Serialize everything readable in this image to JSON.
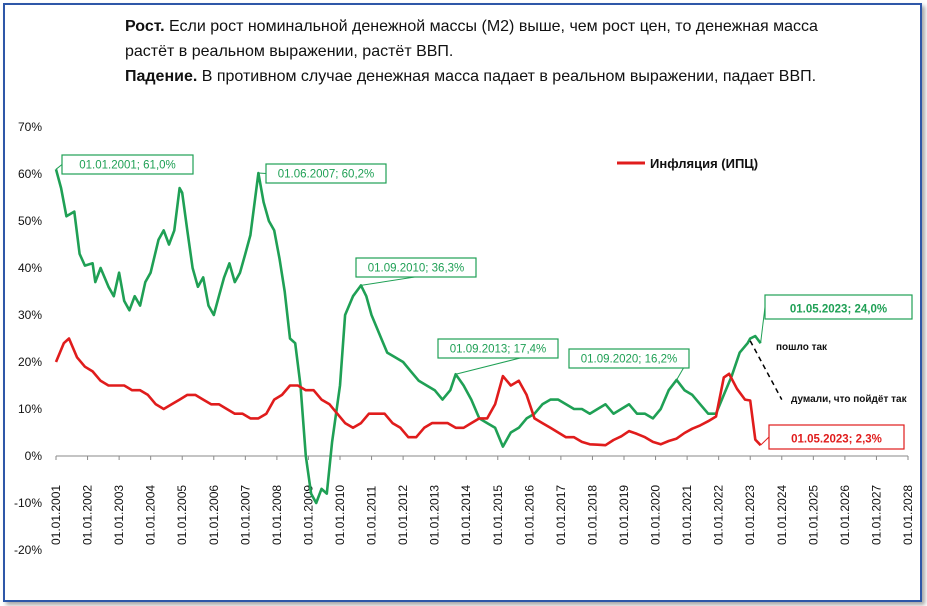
{
  "intro": {
    "growth_label": "Рост.",
    "growth_text": " Если рост номинальной денежной массы (М2) выше, чем рост цен,  то денежная масса растёт в реальном выражении, растёт ВВП.",
    "fall_label": "Падение.",
    "fall_text": " В противном случае денежная масса падает в реальном выражении, падает ВВП."
  },
  "legend": {
    "label": "Инфляция (ИПЦ)"
  },
  "notes": {
    "actual": "пошло так",
    "expected": "думали, что пойдёт так"
  },
  "colors": {
    "m2": "#1fa055",
    "cpi": "#e01c1c",
    "frame": "#2e57a8",
    "dashed": "#000000"
  },
  "chart_data": {
    "type": "line",
    "ylim": [
      -20,
      70
    ],
    "yticks": [
      "-20%",
      "-10%",
      "0%",
      "10%",
      "20%",
      "30%",
      "40%",
      "50%",
      "60%",
      "70%"
    ],
    "x_range": [
      "2001-01-01",
      "2028-01-01"
    ],
    "x_tick_labels": [
      "01.01.2001",
      "01.01.2002",
      "01.01.2003",
      "01.01.2004",
      "01.01.2005",
      "01.01.2006",
      "01.01.2007",
      "01.01.2008",
      "01.01.2009",
      "01.01.2010",
      "01.01.2011",
      "01.01.2012",
      "01.01.2013",
      "01.01.2014",
      "01.01.2015",
      "01.01.2016",
      "01.01.2017",
      "01.01.2018",
      "01.01.2019",
      "01.01.2020",
      "01.01.2021",
      "01.01.2022",
      "01.01.2023",
      "01.01.2024",
      "01.01.2025",
      "01.01.2026",
      "01.01.2027",
      "01.01.2028"
    ],
    "series": [
      {
        "key": "m2",
        "points": [
          [
            "2001-01-01",
            61.0
          ],
          [
            "2001-03-01",
            57
          ],
          [
            "2001-05-01",
            51
          ],
          [
            "2001-08-01",
            52
          ],
          [
            "2001-10-01",
            43
          ],
          [
            "2001-12-01",
            40.5
          ],
          [
            "2002-03-01",
            41
          ],
          [
            "2002-04-01",
            37
          ],
          [
            "2002-06-01",
            40
          ],
          [
            "2002-09-01",
            36
          ],
          [
            "2002-11-01",
            34
          ],
          [
            "2003-01-01",
            39
          ],
          [
            "2003-03-01",
            33
          ],
          [
            "2003-05-01",
            31
          ],
          [
            "2003-07-01",
            34
          ],
          [
            "2003-09-01",
            32
          ],
          [
            "2003-11-01",
            37
          ],
          [
            "2004-01-01",
            39
          ],
          [
            "2004-04-01",
            46
          ],
          [
            "2004-06-01",
            48
          ],
          [
            "2004-08-01",
            45
          ],
          [
            "2004-10-01",
            48
          ],
          [
            "2004-12-01",
            57
          ],
          [
            "2005-01-01",
            56
          ],
          [
            "2005-03-01",
            48
          ],
          [
            "2005-05-01",
            40
          ],
          [
            "2005-07-01",
            36
          ],
          [
            "2005-09-01",
            38
          ],
          [
            "2005-11-01",
            32
          ],
          [
            "2006-01-01",
            30
          ],
          [
            "2006-03-01",
            34
          ],
          [
            "2006-05-01",
            38
          ],
          [
            "2006-07-01",
            41
          ],
          [
            "2006-09-01",
            37
          ],
          [
            "2006-11-01",
            39
          ],
          [
            "2007-01-01",
            43
          ],
          [
            "2007-03-01",
            47
          ],
          [
            "2007-06-01",
            60.2
          ],
          [
            "2007-08-01",
            54
          ],
          [
            "2007-10-01",
            50
          ],
          [
            "2007-12-01",
            48
          ],
          [
            "2008-02-01",
            42
          ],
          [
            "2008-04-01",
            35
          ],
          [
            "2008-06-01",
            25
          ],
          [
            "2008-08-01",
            24
          ],
          [
            "2008-10-01",
            15
          ],
          [
            "2008-12-01",
            0
          ],
          [
            "2009-02-01",
            -8
          ],
          [
            "2009-04-01",
            -10
          ],
          [
            "2009-06-01",
            -7
          ],
          [
            "2009-08-01",
            -8
          ],
          [
            "2009-10-01",
            3
          ],
          [
            "2010-01-01",
            15
          ],
          [
            "2010-03-01",
            30
          ],
          [
            "2010-06-01",
            34
          ],
          [
            "2010-09-01",
            36.3
          ],
          [
            "2010-11-01",
            34
          ],
          [
            "2011-01-01",
            30
          ],
          [
            "2011-04-01",
            26
          ],
          [
            "2011-07-01",
            22
          ],
          [
            "2011-10-01",
            21
          ],
          [
            "2012-01-01",
            20
          ],
          [
            "2012-04-01",
            18
          ],
          [
            "2012-07-01",
            16
          ],
          [
            "2012-10-01",
            15
          ],
          [
            "2013-01-01",
            14
          ],
          [
            "2013-04-01",
            12
          ],
          [
            "2013-07-01",
            14
          ],
          [
            "2013-09-01",
            17.4
          ],
          [
            "2013-12-01",
            15
          ],
          [
            "2014-03-01",
            12
          ],
          [
            "2014-06-01",
            8
          ],
          [
            "2014-09-01",
            7
          ],
          [
            "2014-12-01",
            6
          ],
          [
            "2015-03-01",
            2
          ],
          [
            "2015-06-01",
            5
          ],
          [
            "2015-09-01",
            6
          ],
          [
            "2015-12-01",
            8
          ],
          [
            "2016-03-01",
            9
          ],
          [
            "2016-06-01",
            11
          ],
          [
            "2016-09-01",
            12
          ],
          [
            "2016-12-01",
            12
          ],
          [
            "2017-03-01",
            11
          ],
          [
            "2017-06-01",
            10
          ],
          [
            "2017-09-01",
            10
          ],
          [
            "2017-12-01",
            9
          ],
          [
            "2018-03-01",
            10
          ],
          [
            "2018-06-01",
            11
          ],
          [
            "2018-09-01",
            9
          ],
          [
            "2018-12-01",
            10
          ],
          [
            "2019-03-01",
            11
          ],
          [
            "2019-06-01",
            9
          ],
          [
            "2019-09-01",
            9
          ],
          [
            "2019-12-01",
            8
          ],
          [
            "2020-03-01",
            10
          ],
          [
            "2020-06-01",
            14
          ],
          [
            "2020-09-01",
            16.2
          ],
          [
            "2020-12-01",
            14
          ],
          [
            "2021-03-01",
            13
          ],
          [
            "2021-06-01",
            11
          ],
          [
            "2021-09-01",
            9
          ],
          [
            "2021-12-01",
            9
          ],
          [
            "2022-03-01",
            13
          ],
          [
            "2022-06-01",
            17
          ],
          [
            "2022-09-01",
            22
          ],
          [
            "2022-12-01",
            24
          ],
          [
            "2023-01-01",
            25
          ],
          [
            "2023-03-01",
            25.5
          ],
          [
            "2023-05-01",
            24.0
          ]
        ]
      },
      {
        "key": "cpi",
        "name": "Инфляция (ИПЦ)",
        "points": [
          [
            "2001-01-01",
            20
          ],
          [
            "2001-04-01",
            24
          ],
          [
            "2001-06-01",
            25
          ],
          [
            "2001-09-01",
            21
          ],
          [
            "2001-12-01",
            19
          ],
          [
            "2002-03-01",
            18
          ],
          [
            "2002-06-01",
            16
          ],
          [
            "2002-09-01",
            15
          ],
          [
            "2002-12-01",
            15
          ],
          [
            "2003-03-01",
            15
          ],
          [
            "2003-06-01",
            14
          ],
          [
            "2003-09-01",
            14
          ],
          [
            "2003-12-01",
            13
          ],
          [
            "2004-03-01",
            11
          ],
          [
            "2004-06-01",
            10
          ],
          [
            "2004-09-01",
            11
          ],
          [
            "2004-12-01",
            12
          ],
          [
            "2005-03-01",
            13
          ],
          [
            "2005-06-01",
            13
          ],
          [
            "2005-09-01",
            12
          ],
          [
            "2005-12-01",
            11
          ],
          [
            "2006-03-01",
            11
          ],
          [
            "2006-06-01",
            10
          ],
          [
            "2006-09-01",
            9
          ],
          [
            "2006-12-01",
            9
          ],
          [
            "2007-03-01",
            8
          ],
          [
            "2007-06-01",
            8
          ],
          [
            "2007-09-01",
            9
          ],
          [
            "2007-12-01",
            12
          ],
          [
            "2008-03-01",
            13
          ],
          [
            "2008-06-01",
            15
          ],
          [
            "2008-09-01",
            15
          ],
          [
            "2008-12-01",
            14
          ],
          [
            "2009-03-01",
            14
          ],
          [
            "2009-06-01",
            12
          ],
          [
            "2009-09-01",
            11
          ],
          [
            "2009-12-01",
            9
          ],
          [
            "2010-03-01",
            7
          ],
          [
            "2010-06-01",
            6
          ],
          [
            "2010-09-01",
            7
          ],
          [
            "2010-12-01",
            9
          ],
          [
            "2011-03-01",
            9
          ],
          [
            "2011-06-01",
            9
          ],
          [
            "2011-09-01",
            7
          ],
          [
            "2011-12-01",
            6
          ],
          [
            "2012-03-01",
            4
          ],
          [
            "2012-06-01",
            4
          ],
          [
            "2012-09-01",
            6
          ],
          [
            "2012-12-01",
            7
          ],
          [
            "2013-03-01",
            7
          ],
          [
            "2013-06-01",
            7
          ],
          [
            "2013-09-01",
            6
          ],
          [
            "2013-12-01",
            6
          ],
          [
            "2014-03-01",
            7
          ],
          [
            "2014-06-01",
            8
          ],
          [
            "2014-09-01",
            8
          ],
          [
            "2014-12-01",
            11
          ],
          [
            "2015-03-01",
            17
          ],
          [
            "2015-06-01",
            15
          ],
          [
            "2015-09-01",
            16
          ],
          [
            "2015-12-01",
            13
          ],
          [
            "2016-03-01",
            8
          ],
          [
            "2016-06-01",
            7
          ],
          [
            "2016-09-01",
            6
          ],
          [
            "2016-12-01",
            5
          ],
          [
            "2017-03-01",
            4
          ],
          [
            "2017-06-01",
            4
          ],
          [
            "2017-09-01",
            3
          ],
          [
            "2017-12-01",
            2.5
          ],
          [
            "2018-03-01",
            2.4
          ],
          [
            "2018-06-01",
            2.3
          ],
          [
            "2018-09-01",
            3.4
          ],
          [
            "2018-12-01",
            4.2
          ],
          [
            "2019-03-01",
            5.3
          ],
          [
            "2019-06-01",
            4.7
          ],
          [
            "2019-09-01",
            4
          ],
          [
            "2019-12-01",
            3
          ],
          [
            "2020-03-01",
            2.5
          ],
          [
            "2020-06-01",
            3.2
          ],
          [
            "2020-09-01",
            3.7
          ],
          [
            "2020-12-01",
            4.9
          ],
          [
            "2021-03-01",
            5.8
          ],
          [
            "2021-06-01",
            6.5
          ],
          [
            "2021-09-01",
            7.4
          ],
          [
            "2021-12-01",
            8.4
          ],
          [
            "2022-03-01",
            16.7
          ],
          [
            "2022-05-01",
            17.5
          ],
          [
            "2022-08-01",
            14.3
          ],
          [
            "2022-11-01",
            12
          ],
          [
            "2023-01-01",
            11.8
          ],
          [
            "2023-03-01",
            3.5
          ],
          [
            "2023-05-01",
            2.3
          ]
        ]
      }
    ],
    "callouts": [
      {
        "text": "01.01.2001; 61,0%",
        "date": "2001-01-01",
        "value": 61.0,
        "color": "green"
      },
      {
        "text": "01.06.2007; 60,2%",
        "date": "2007-06-01",
        "value": 60.2,
        "color": "green"
      },
      {
        "text": "01.09.2010; 36,3%",
        "date": "2010-09-01",
        "value": 36.3,
        "color": "green"
      },
      {
        "text": "01.09.2013; 17,4%",
        "date": "2013-09-01",
        "value": 17.4,
        "color": "green"
      },
      {
        "text": "01.09.2020; 16,2%",
        "date": "2020-09-01",
        "value": 16.2,
        "color": "green"
      },
      {
        "text": "01.05.2023; 24,0%",
        "date": "2023-05-01",
        "value": 24.0,
        "color": "green"
      },
      {
        "text": "01.05.2023; 2,3%",
        "date": "2023-05-01",
        "value": 2.3,
        "color": "red"
      }
    ],
    "expected_path": [
      [
        "2023-01-01",
        24.5
      ],
      [
        "2024-01-01",
        12
      ]
    ]
  }
}
